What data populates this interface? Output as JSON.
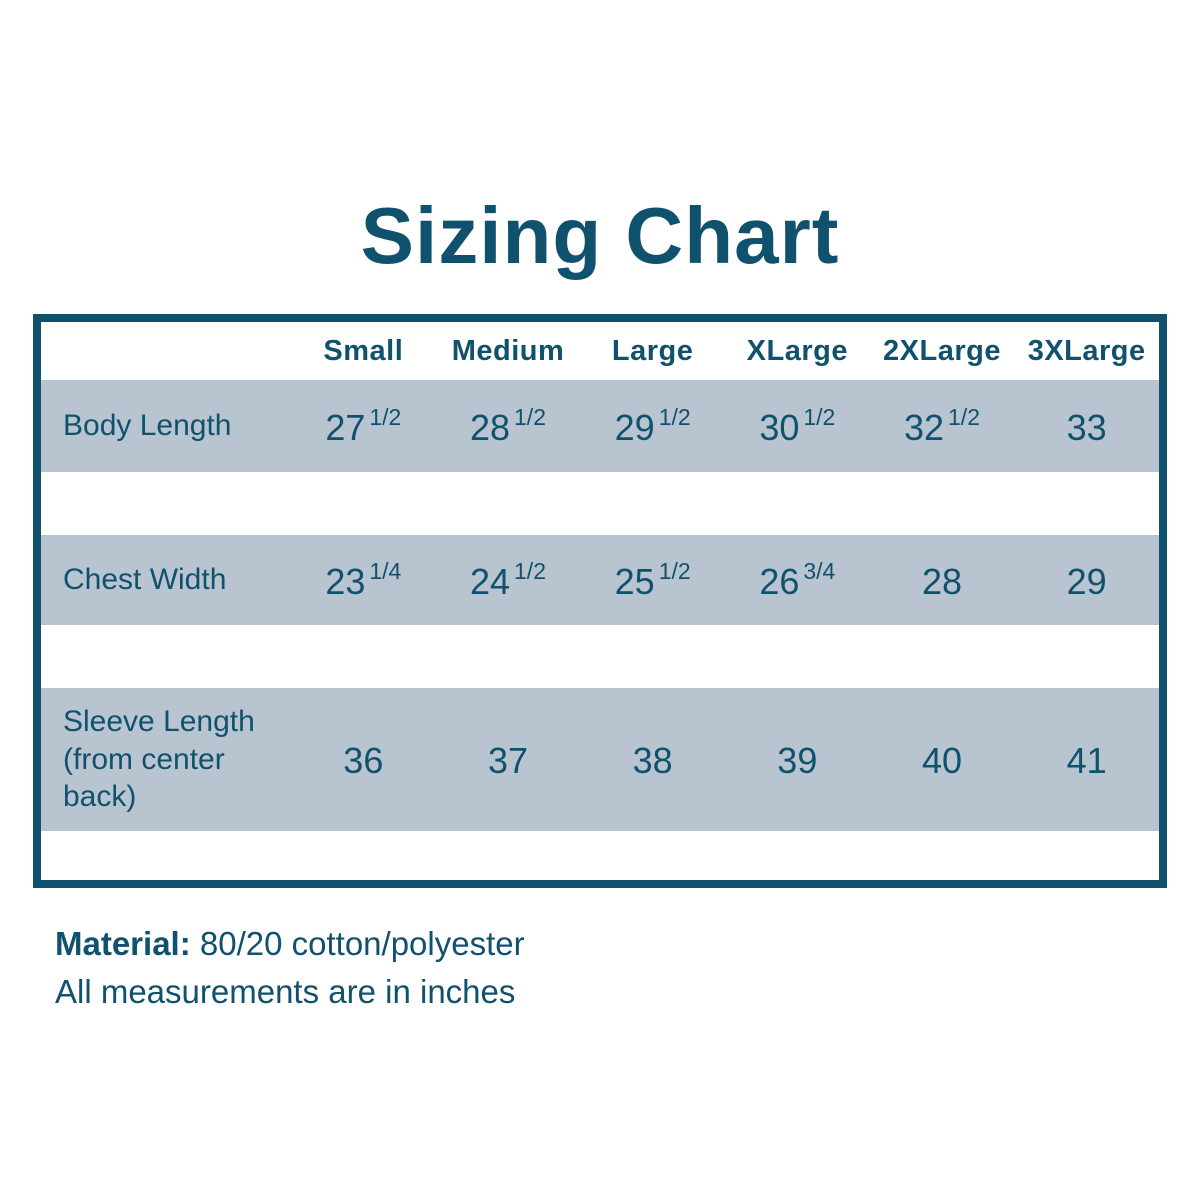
{
  "title": "Sizing Chart",
  "colors": {
    "accent_teal": "#10516e",
    "row_background": "#b8c5d1",
    "page_background": "#ffffff"
  },
  "table": {
    "columns": [
      "Small",
      "Medium",
      "Large",
      "XLarge",
      "2XLarge",
      "3XLarge"
    ],
    "rows": [
      {
        "label": "Body Length",
        "values": [
          {
            "num": "27",
            "frac": "1/2"
          },
          {
            "num": "28",
            "frac": "1/2"
          },
          {
            "num": "29",
            "frac": "1/2"
          },
          {
            "num": "30",
            "frac": "1/2"
          },
          {
            "num": "32",
            "frac": "1/2"
          },
          {
            "num": "33",
            "frac": ""
          }
        ]
      },
      {
        "label": "Chest Width",
        "values": [
          {
            "num": "23",
            "frac": "1/4"
          },
          {
            "num": "24",
            "frac": "1/2"
          },
          {
            "num": "25",
            "frac": "1/2"
          },
          {
            "num": "26",
            "frac": "3/4"
          },
          {
            "num": "28",
            "frac": ""
          },
          {
            "num": "29",
            "frac": ""
          }
        ]
      },
      {
        "label": "Sleeve Length (from center back)",
        "values": [
          {
            "num": "36",
            "frac": ""
          },
          {
            "num": "37",
            "frac": ""
          },
          {
            "num": "38",
            "frac": ""
          },
          {
            "num": "39",
            "frac": ""
          },
          {
            "num": "40",
            "frac": ""
          },
          {
            "num": "41",
            "frac": ""
          }
        ]
      }
    ]
  },
  "footer": {
    "material_label": "Material:",
    "material_value": " 80/20 cotton/polyester",
    "note": "All measurements are in inches"
  }
}
